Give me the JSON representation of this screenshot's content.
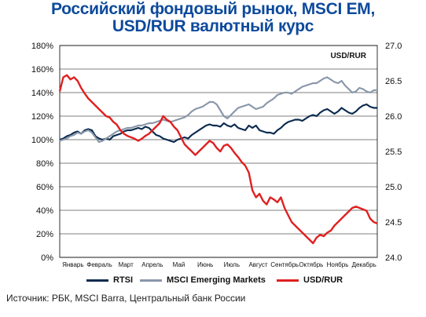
{
  "title_line1": "Российский фондовый рынок, MSCI EM,",
  "title_line2": "USD/RUR валютный курс",
  "source": "Источник: РБК, MSCI Barra, Центральный банк России",
  "colors": {
    "rtsi": "#0b2a4f",
    "msci": "#8a97aa",
    "usdrur": "#e02020",
    "title": "#0d4a9c"
  },
  "chart_data": {
    "type": "line",
    "left_axis": {
      "min": 0,
      "max": 180,
      "step": 20,
      "ticks": [
        "0%",
        "20%",
        "40%",
        "60%",
        "80%",
        "100%",
        "120%",
        "140%",
        "160%",
        "180%"
      ]
    },
    "right_axis": {
      "min": 24.0,
      "max": 27.0,
      "ticks": [
        "24.0",
        "24.5",
        "25.0",
        "25.5",
        "26.0",
        "26.5",
        "27.0"
      ],
      "label": "USD/RUR"
    },
    "x_labels": [
      "Январь",
      "Февраль",
      "Март",
      "Апрель",
      "Май",
      "Июнь",
      "Июль",
      "Август",
      "Сентябрь",
      "Октябрь",
      "Ноябрь",
      "Декабрь"
    ],
    "grid": "horizontal",
    "legend_position": "bottom",
    "series": [
      {
        "name": "RTSI",
        "axis": "left",
        "color": "#0b2a4f",
        "values": [
          100,
          101,
          103,
          104,
          106,
          107,
          105,
          108,
          109,
          108,
          103,
          101,
          100,
          101,
          100,
          103,
          104,
          105,
          107,
          108,
          108,
          109,
          110,
          109,
          111,
          110,
          107,
          104,
          103,
          101,
          100,
          99,
          98,
          100,
          101,
          102,
          101,
          104,
          106,
          108,
          110,
          112,
          113,
          112,
          112,
          111,
          114,
          112,
          111,
          113,
          110,
          109,
          108,
          112,
          110,
          112,
          108,
          107,
          106,
          106,
          105,
          108,
          110,
          113,
          115,
          116,
          117,
          117,
          116,
          118,
          120,
          121,
          120,
          123,
          125,
          126,
          124,
          122,
          124,
          127,
          125,
          123,
          122,
          124,
          127,
          129,
          130,
          128,
          127,
          127
        ]
      },
      {
        "name": "MSCI Emerging Markets",
        "axis": "left",
        "color": "#8a97aa",
        "values": [
          99,
          100,
          101,
          103,
          104,
          106,
          105,
          107,
          108,
          106,
          102,
          98,
          99,
          101,
          103,
          105,
          107,
          108,
          109,
          110,
          110,
          111,
          112,
          112,
          113,
          114,
          114,
          115,
          116,
          117,
          116,
          115,
          116,
          117,
          118,
          119,
          121,
          124,
          126,
          127,
          128,
          130,
          132,
          132,
          130,
          125,
          120,
          118,
          121,
          124,
          127,
          128,
          129,
          130,
          128,
          126,
          127,
          128,
          131,
          133,
          135,
          138,
          139,
          140,
          140,
          139,
          141,
          143,
          145,
          146,
          147,
          148,
          148,
          150,
          152,
          153,
          151,
          149,
          148,
          150,
          146,
          143,
          140,
          141,
          144,
          143,
          141,
          140,
          142,
          142
        ]
      },
      {
        "name": "USD/RUR",
        "axis": "right",
        "color": "#e02020",
        "values": [
          26.35,
          26.55,
          26.58,
          26.52,
          26.55,
          26.5,
          26.4,
          26.32,
          26.25,
          26.2,
          26.15,
          26.1,
          26.05,
          26,
          25.98,
          25.92,
          25.88,
          25.8,
          25.75,
          25.72,
          25.7,
          25.68,
          25.65,
          25.68,
          25.72,
          25.75,
          25.8,
          25.85,
          25.9,
          26.0,
          25.95,
          25.92,
          25.85,
          25.8,
          25.7,
          25.6,
          25.55,
          25.5,
          25.45,
          25.5,
          25.55,
          25.6,
          25.65,
          25.62,
          25.55,
          25.5,
          25.58,
          25.6,
          25.55,
          25.48,
          25.42,
          25.35,
          25.3,
          25.2,
          24.95,
          24.85,
          24.9,
          24.8,
          24.75,
          24.85,
          24.82,
          24.78,
          24.85,
          24.7,
          24.6,
          24.5,
          24.45,
          24.4,
          24.35,
          24.3,
          24.25,
          24.2,
          24.28,
          24.32,
          24.3,
          24.35,
          24.38,
          24.45,
          24.5,
          24.55,
          24.6,
          24.65,
          24.7,
          24.72,
          24.7,
          24.68,
          24.66,
          24.55,
          24.5,
          24.48
        ]
      }
    ]
  }
}
